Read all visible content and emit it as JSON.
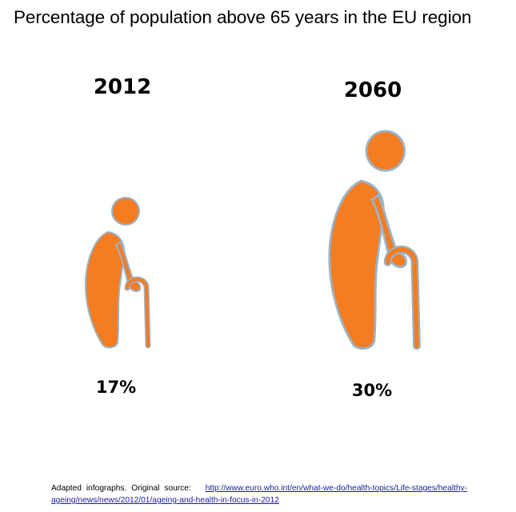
{
  "title": "Percentage of population above 65 years in the EU region",
  "source": {
    "prefix": "Adapted infographs. Original source:",
    "link": "http://www.euro.who.int/en/what-we-do/health-topics/Life-stages/healthy-ageing/news/news/2012/01/ageing-and-health-in-focus-in-2012"
  },
  "colors": {
    "figure": "#f47c21",
    "outline": "#9ab3c8",
    "link": "#1a1aa6"
  },
  "chart_data": {
    "type": "bar",
    "title": "Percentage of population above 65 years in the EU region",
    "categories": [
      "2012",
      "2060"
    ],
    "values": [
      17,
      30
    ],
    "value_labels": [
      "17%",
      "30%"
    ],
    "marks": "elderly-person-with-cane-icon"
  }
}
